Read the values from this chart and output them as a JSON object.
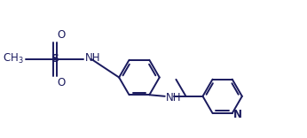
{
  "bg_color": "#ffffff",
  "line_color": "#1a1a5e",
  "line_width": 1.4,
  "font_size": 8.5,
  "figsize": [
    3.46,
    1.56
  ],
  "dpi": 100,
  "xlim": [
    0,
    10.5
  ],
  "ylim": [
    0,
    4.5
  ]
}
